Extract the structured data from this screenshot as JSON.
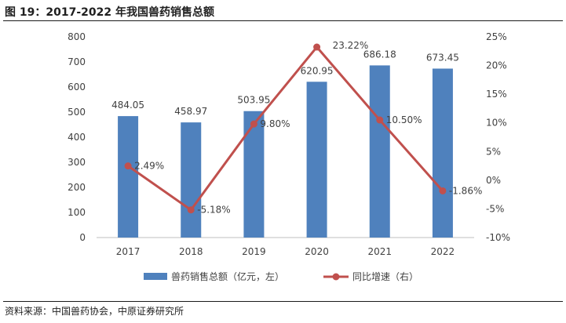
{
  "figure": {
    "title": "图 19：2017-2022 年我国兽药销售总额",
    "source": "资料来源：中国兽药协会，中原证券研究所"
  },
  "colors": {
    "bar": "#4f81bd",
    "line": "#c0504d",
    "axis": "#bfbfbf",
    "text": "#404040"
  },
  "chart_data": {
    "type": "bar",
    "categories": [
      "2017",
      "2018",
      "2019",
      "2020",
      "2021",
      "2022"
    ],
    "series": [
      {
        "name": "兽药销售总额（亿元，左）",
        "type": "bar",
        "axis": "left",
        "values": [
          484.05,
          458.97,
          503.95,
          620.95,
          686.18,
          673.45
        ],
        "labels": [
          "484.05",
          "458.97",
          "503.95",
          "620.95",
          "686.18",
          "673.45"
        ]
      },
      {
        "name": "同比增速（右）",
        "type": "line",
        "axis": "right",
        "values": [
          2.49,
          -5.18,
          9.8,
          23.22,
          10.5,
          -1.86
        ],
        "labels": [
          "2.49%",
          "-5.18%",
          "9.80%",
          "23.22%",
          "10.50%",
          "-1.86%"
        ]
      }
    ],
    "y_left": {
      "min": 0,
      "max": 800,
      "step": 100,
      "ticks": [
        "0",
        "100",
        "200",
        "300",
        "400",
        "500",
        "600",
        "700",
        "800"
      ]
    },
    "y_right": {
      "min": -10,
      "max": 25,
      "step": 5,
      "ticks": [
        "-10%",
        "-5%",
        "0%",
        "5%",
        "10%",
        "15%",
        "20%",
        "25%"
      ]
    },
    "grid": false,
    "legend_position": "bottom"
  }
}
